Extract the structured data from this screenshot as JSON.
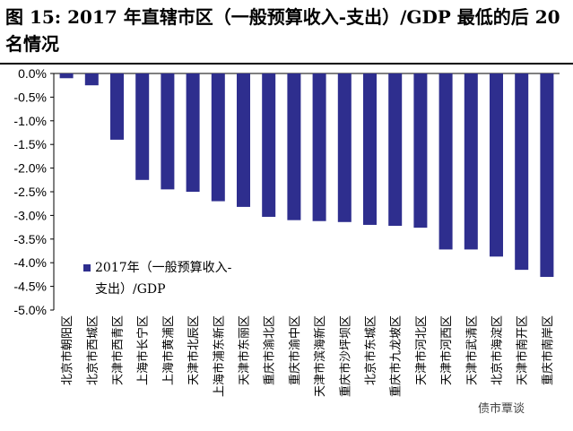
{
  "title": "图 15:  2017 年直辖市区（一般预算收入-支出）/GDP 最低的后 20 名情况",
  "watermark": "债市覃谈",
  "chart_data": {
    "type": "bar",
    "title": "图 15:  2017 年直辖市区（一般预算收入-支出）/GDP 最低的后 20 名情况",
    "categories": [
      "北京市朝阳区",
      "北京市西城区",
      "天津市西青区",
      "上海市长宁区",
      "上海市黄浦区",
      "天津市北辰区",
      "上海市浦东新区",
      "天津市东丽区",
      "重庆市渝北区",
      "重庆市渝中区",
      "天津市滨海新区",
      "重庆市沙坪坝区",
      "北京市东城区",
      "重庆市九龙坡区",
      "天津市河北区",
      "天津市河西区",
      "天津市武清区",
      "北京市海淀区",
      "天津市南开区",
      "重庆市南岸区"
    ],
    "series": [
      {
        "name": "2017年（一般预算收入-支出）/GDP",
        "values": [
          -0.1,
          -0.25,
          -1.4,
          -2.25,
          -2.45,
          -2.5,
          -2.7,
          -2.82,
          -3.03,
          -3.1,
          -3.12,
          -3.14,
          -3.2,
          -3.22,
          -3.26,
          -3.72,
          -3.72,
          -3.87,
          -4.15,
          -4.3
        ]
      }
    ],
    "legend_line1": "2017年（一般预算收入-",
    "legend_line2": "支出）/GDP",
    "yticks": [
      0,
      -0.5,
      -1,
      -1.5,
      -2,
      -2.5,
      -3,
      -3.5,
      -4,
      -4.5,
      -5
    ],
    "ytick_labels": [
      "0.0%",
      "-0.5%",
      "-1.0%",
      "-1.5%",
      "-2.0%",
      "-2.5%",
      "-3.0%",
      "-3.5%",
      "-4.0%",
      "-4.5%",
      "-5.0%"
    ],
    "ylim": [
      -5,
      0
    ],
    "xlabel": "",
    "ylabel": "",
    "bar_color": "#2e2e8e",
    "legend_position": "bottom-left"
  }
}
